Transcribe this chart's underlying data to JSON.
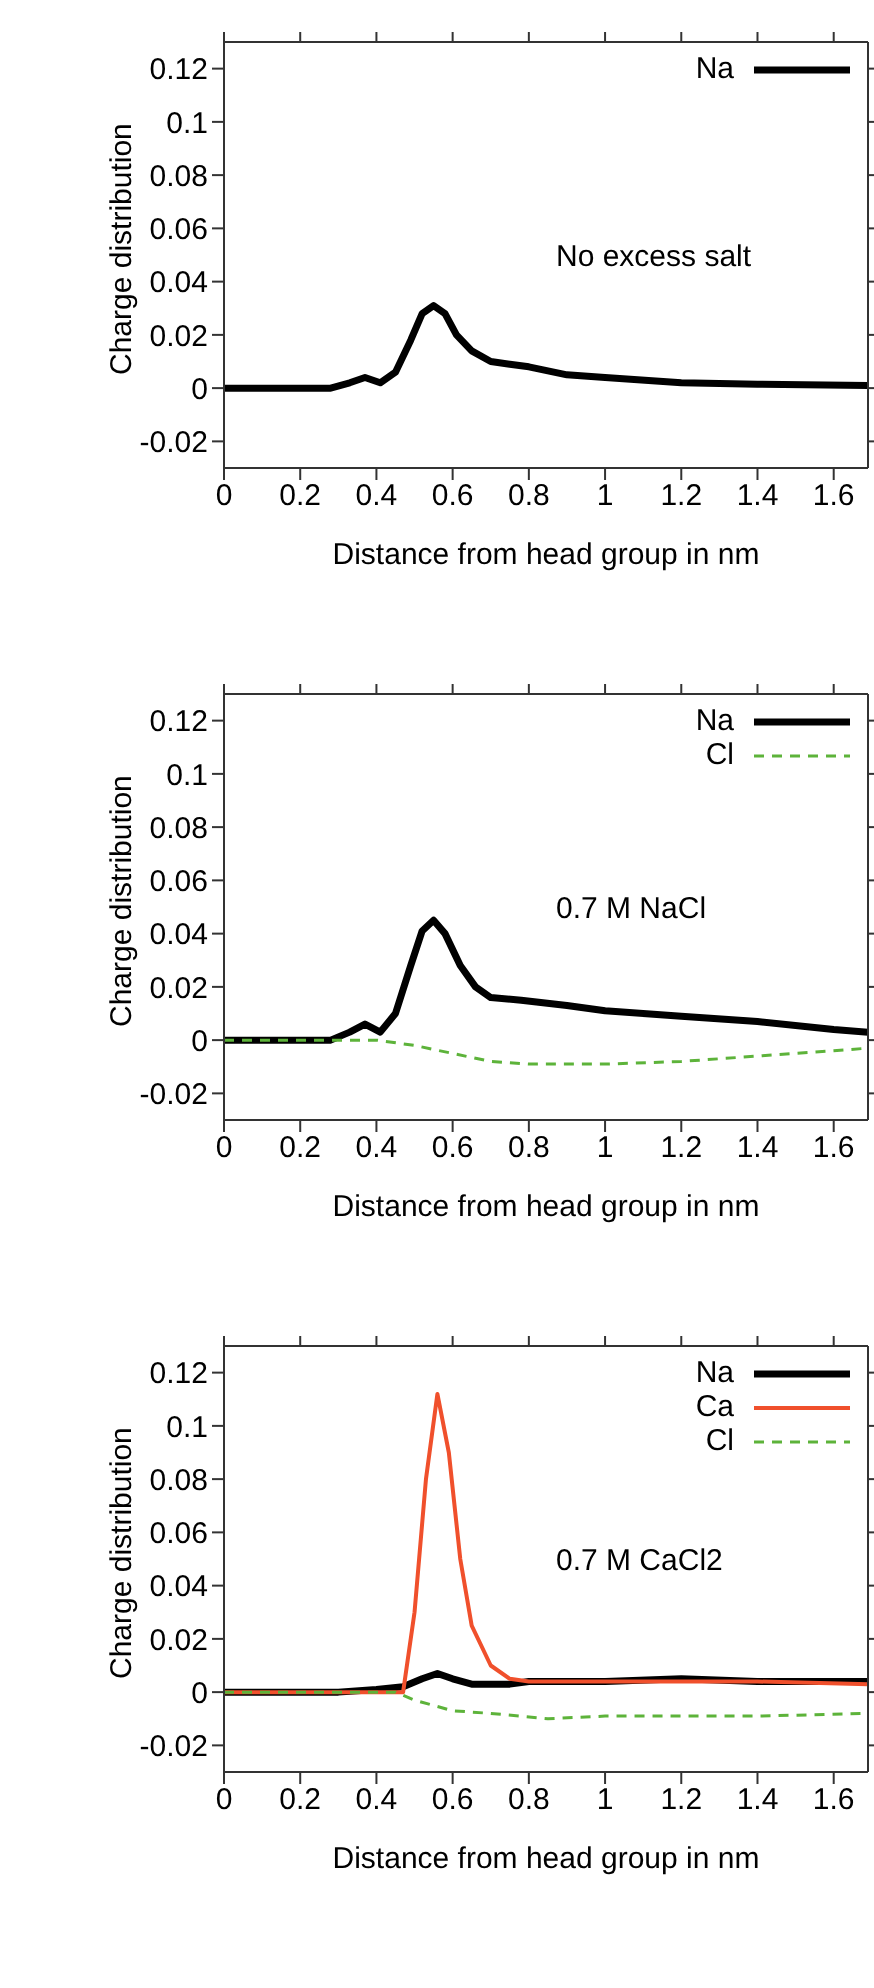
{
  "chart_data": [
    {
      "type": "line",
      "xlabel": "Distance from head group in nm",
      "ylabel": "Charge distribution",
      "annotations": [
        "No excess salt"
      ],
      "xlim": [
        0,
        1.69
      ],
      "ylim": [
        -0.03,
        0.13
      ],
      "xticks": [
        0,
        0.2,
        0.4,
        0.6,
        0.8,
        1,
        1.2,
        1.4,
        1.6
      ],
      "yticks": [
        -0.02,
        0,
        0.02,
        0.04,
        0.06,
        0.08,
        0.1,
        0.12
      ],
      "legend": "top right",
      "marker": "none",
      "series": [
        {
          "name": "Na",
          "color": "#000000",
          "line_style": "solid",
          "x": [
            0,
            0.28,
            0.33,
            0.37,
            0.41,
            0.45,
            0.49,
            0.52,
            0.55,
            0.58,
            0.61,
            0.65,
            0.7,
            0.75,
            0.8,
            0.9,
            1.0,
            1.2,
            1.4,
            1.69
          ],
          "values": [
            0,
            0,
            0.002,
            0.004,
            0.002,
            0.006,
            0.018,
            0.028,
            0.031,
            0.028,
            0.02,
            0.014,
            0.01,
            0.009,
            0.008,
            0.005,
            0.004,
            0.002,
            0.0015,
            0.001
          ]
        }
      ]
    },
    {
      "type": "line",
      "xlabel": "Distance from head group in nm",
      "ylabel": "Charge distribution",
      "annotations": [
        "0.7 M NaCl"
      ],
      "xlim": [
        0,
        1.69
      ],
      "ylim": [
        -0.03,
        0.13
      ],
      "xticks": [
        0,
        0.2,
        0.4,
        0.6,
        0.8,
        1,
        1.2,
        1.4,
        1.6
      ],
      "yticks": [
        -0.02,
        0,
        0.02,
        0.04,
        0.06,
        0.08,
        0.1,
        0.12
      ],
      "legend": "top right",
      "marker": "none",
      "series": [
        {
          "name": "Na",
          "color": "#000000",
          "line_style": "solid",
          "x": [
            0,
            0.28,
            0.33,
            0.37,
            0.41,
            0.45,
            0.49,
            0.52,
            0.55,
            0.58,
            0.62,
            0.66,
            0.7,
            0.78,
            0.9,
            1.0,
            1.2,
            1.4,
            1.6,
            1.69
          ],
          "values": [
            0,
            0,
            0.003,
            0.006,
            0.003,
            0.01,
            0.028,
            0.041,
            0.045,
            0.04,
            0.028,
            0.02,
            0.016,
            0.015,
            0.013,
            0.011,
            0.009,
            0.007,
            0.004,
            0.003
          ]
        },
        {
          "name": "Cl",
          "color": "#5db33a",
          "line_style": "dashed",
          "x": [
            0,
            0.4,
            0.5,
            0.6,
            0.7,
            0.8,
            1.0,
            1.2,
            1.4,
            1.6,
            1.69
          ],
          "values": [
            0,
            0,
            -0.002,
            -0.005,
            -0.008,
            -0.009,
            -0.009,
            -0.008,
            -0.006,
            -0.004,
            -0.003
          ]
        }
      ]
    },
    {
      "type": "line",
      "xlabel": "Distance from head group in nm",
      "ylabel": "Charge distribution",
      "annotations": [
        "0.7 M CaCl2"
      ],
      "xlim": [
        0,
        1.69
      ],
      "ylim": [
        -0.03,
        0.13
      ],
      "xticks": [
        0,
        0.2,
        0.4,
        0.6,
        0.8,
        1,
        1.2,
        1.4,
        1.6
      ],
      "yticks": [
        -0.02,
        0,
        0.02,
        0.04,
        0.06,
        0.08,
        0.1,
        0.12
      ],
      "legend": "top right",
      "marker": "none",
      "series": [
        {
          "name": "Na",
          "color": "#000000",
          "line_style": "solid",
          "x": [
            0,
            0.3,
            0.4,
            0.47,
            0.52,
            0.56,
            0.6,
            0.65,
            0.75,
            0.8,
            1.0,
            1.2,
            1.4,
            1.69
          ],
          "values": [
            0,
            0,
            0.001,
            0.002,
            0.005,
            0.007,
            0.005,
            0.003,
            0.003,
            0.004,
            0.004,
            0.005,
            0.004,
            0.004
          ]
        },
        {
          "name": "Ca",
          "color": "#f0502c",
          "line_style": "solid",
          "x": [
            0,
            0.47,
            0.5,
            0.53,
            0.56,
            0.59,
            0.62,
            0.65,
            0.7,
            0.75,
            0.8,
            1.0,
            1.2,
            1.4,
            1.69
          ],
          "values": [
            0,
            0,
            0.03,
            0.08,
            0.112,
            0.09,
            0.05,
            0.025,
            0.01,
            0.005,
            0.004,
            0.004,
            0.004,
            0.004,
            0.003
          ]
        },
        {
          "name": "Cl",
          "color": "#5db33a",
          "line_style": "dashed",
          "x": [
            0,
            0.45,
            0.5,
            0.6,
            0.7,
            0.85,
            1.0,
            1.2,
            1.4,
            1.69
          ],
          "values": [
            0,
            0,
            -0.003,
            -0.007,
            -0.008,
            -0.01,
            -0.009,
            -0.009,
            -0.009,
            -0.008
          ]
        }
      ]
    }
  ]
}
